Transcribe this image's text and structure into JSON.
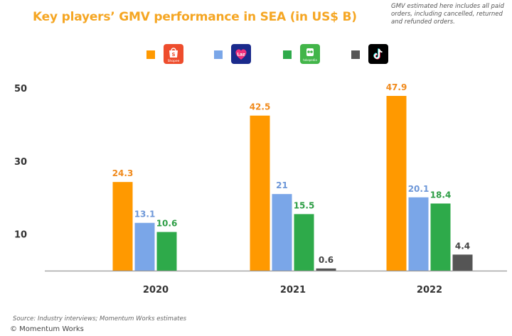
{
  "header": {
    "title": "Key players’ GMV performance in SEA (in US$ B)",
    "note": "GMV estimated here includes all paid orders, including cancelled, returned and refunded orders."
  },
  "legend": [
    {
      "name": "Shopee",
      "logo_text": "Shopee",
      "color": "#ff9900",
      "logo_bg": "#ee4d2d",
      "icon": "shopee-bag-icon"
    },
    {
      "name": "Lazada",
      "logo_text": "Laz",
      "color": "#7aa6e8",
      "logo_bg": "#1a2a8c",
      "icon": "lazada-heart-icon"
    },
    {
      "name": "Tokopedia",
      "logo_text": "tokopedia",
      "color": "#2eaa4a",
      "logo_bg": "#42b549",
      "icon": "tokopedia-owl-icon"
    },
    {
      "name": "TikTok",
      "logo_text": "",
      "color": "#555555",
      "logo_bg": "#000000",
      "icon": "tiktok-note-icon"
    }
  ],
  "chart_data": {
    "type": "bar",
    "categories": [
      "2020",
      "2021",
      "2022"
    ],
    "series": [
      {
        "color": "#ff9900",
        "label_color": "#f08a1c",
        "values": [
          24.3,
          42.5,
          47.9
        ]
      },
      {
        "color": "#7aa6e8",
        "label_color": "#6d97d8",
        "values": [
          13.1,
          21,
          20.1
        ]
      },
      {
        "color": "#2eaa4a",
        "label_color": "#2e9e46",
        "values": [
          10.6,
          15.5,
          18.4
        ]
      },
      {
        "color": "#555555",
        "label_color": "#444444",
        "values": [
          null,
          0.6,
          4.4
        ]
      }
    ],
    "value_labels": [
      [
        "24.3",
        "42.5",
        "47.9"
      ],
      [
        "13.1",
        "21",
        "20.1"
      ],
      [
        "10.6",
        "15.5",
        "18.4"
      ],
      [
        "",
        "0.6",
        "4.4"
      ]
    ],
    "y_ticks": [
      10,
      30,
      50
    ],
    "y_tick_labels": [
      "10",
      "30",
      "50"
    ],
    "ylim": [
      0,
      50
    ],
    "grid": false,
    "legend_position": "top"
  },
  "footer": {
    "source": "Source: Industry interviews; Momentum Works estimates",
    "copyright": "© Momentum Works"
  }
}
